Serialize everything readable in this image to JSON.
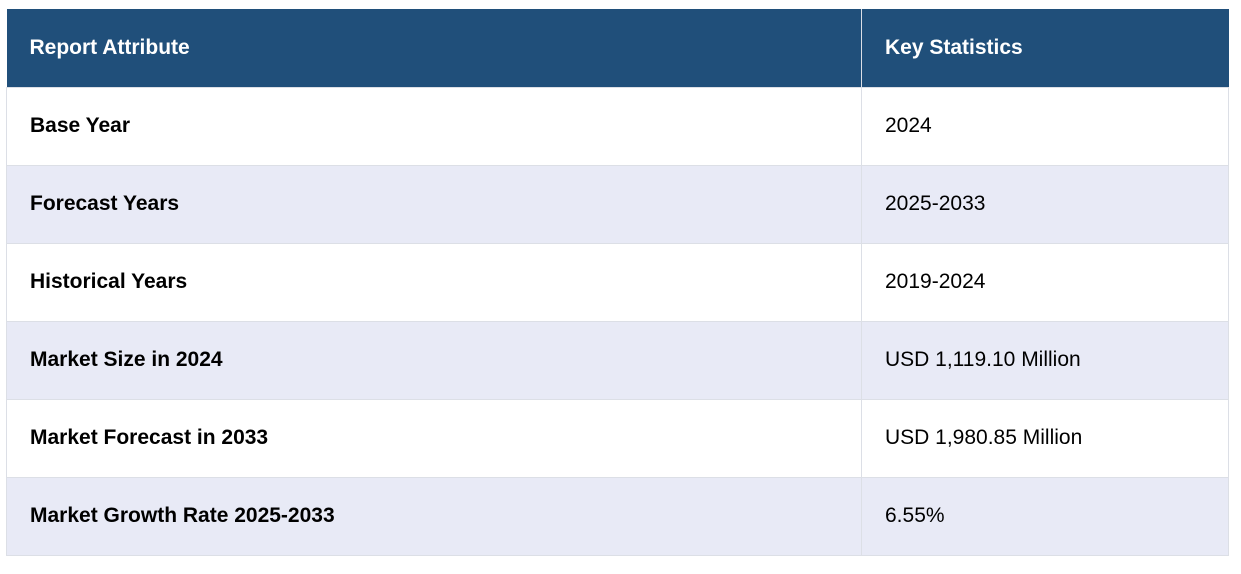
{
  "table": {
    "header": {
      "attribute": "Report Attribute",
      "value": "Key Statistics"
    },
    "rows": [
      {
        "attribute": "Base Year",
        "value": "2024"
      },
      {
        "attribute": "Forecast Years",
        "value": "2025-2033"
      },
      {
        "attribute": "Historical Years",
        "value": "2019-2024"
      },
      {
        "attribute": "Market Size in 2024",
        "value": "USD 1,119.10 Million"
      },
      {
        "attribute": "Market Forecast in 2033",
        "value": "USD 1,980.85 Million"
      },
      {
        "attribute": "Market Growth Rate 2025-2033",
        "value": "6.55%"
      }
    ],
    "colors": {
      "header_background": "#204f7a",
      "header_text": "#ffffff",
      "row_alternate": "#e8eaf6",
      "row_base": "#ffffff",
      "border": "#dcdfe6"
    }
  }
}
